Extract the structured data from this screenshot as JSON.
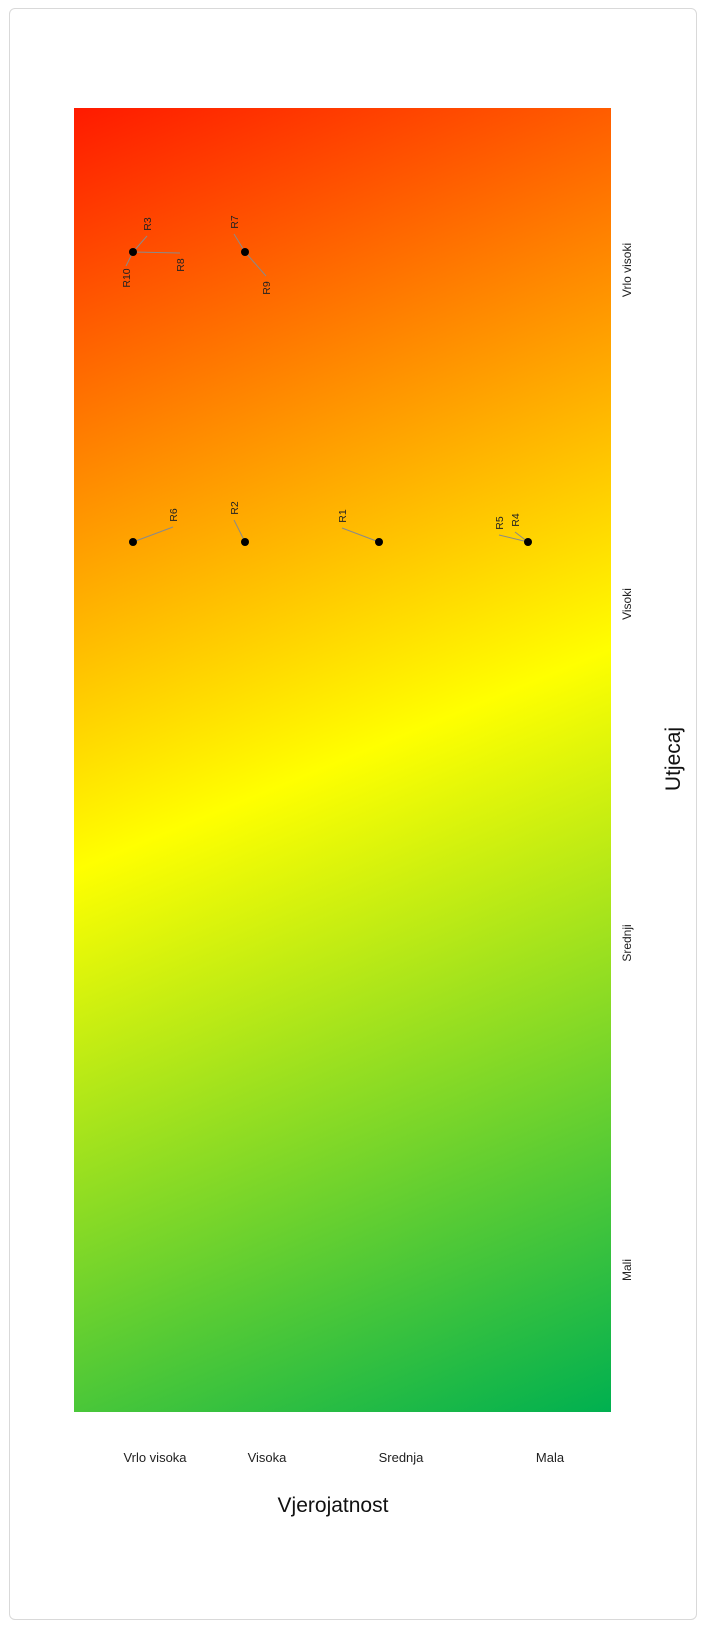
{
  "chart_data": {
    "type": "scatter",
    "title": "",
    "xlabel": "Vjerojatnost",
    "ylabel": "Utjecaj",
    "x_categories": [
      "Vrlo visoka",
      "Visoka",
      "Srednja",
      "Mala"
    ],
    "y_categories": [
      "Vrlo visoki",
      "Visoki",
      "Srednji",
      "Mali"
    ],
    "gradient": [
      "#ff1a00",
      "#ffff00",
      "#00b050"
    ],
    "point_color": "#000000",
    "points": [
      {
        "label": "R3",
        "x": "Vrlo visoka",
        "y": "Vrlo visoki"
      },
      {
        "label": "R8",
        "x": "Vrlo visoka",
        "y": "Vrlo visoki"
      },
      {
        "label": "R10",
        "x": "Vrlo visoka",
        "y": "Vrlo visoki"
      },
      {
        "label": "R7",
        "x": "Visoka",
        "y": "Vrlo visoki"
      },
      {
        "label": "R9",
        "x": "Visoka",
        "y": "Vrlo visoki"
      },
      {
        "label": "R6",
        "x": "Vrlo visoka",
        "y": "Visoki"
      },
      {
        "label": "R2",
        "x": "Visoka",
        "y": "Visoki"
      },
      {
        "label": "R1",
        "x": "Srednja",
        "y": "Visoki"
      },
      {
        "label": "R5",
        "x": "Mala",
        "y": "Visoki"
      },
      {
        "label": "R4",
        "x": "Mala",
        "y": "Visoki"
      }
    ]
  }
}
